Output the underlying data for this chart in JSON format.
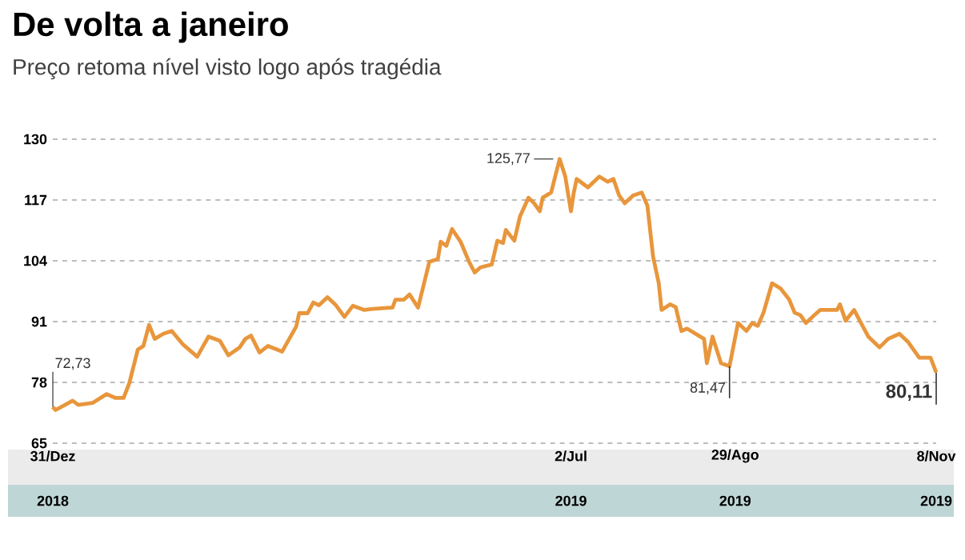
{
  "chart_data": {
    "type": "line",
    "title": "De volta a janeiro",
    "subtitle": "Preço retoma nível visto logo após tragédia",
    "xlim": [
      "2018-12-31",
      "2019-11-08"
    ],
    "ylim": [
      65,
      130
    ],
    "yticks": [
      65,
      78,
      91,
      104,
      117,
      130
    ],
    "xticks": [
      {
        "value": "2018-12-31",
        "label": "31/Dez"
      },
      {
        "value": "2019-07-02",
        "label": "2/Jul"
      },
      {
        "value": "2019-08-29",
        "label": "29/Ago"
      },
      {
        "value": "2019-11-08",
        "label": "8/Nov"
      }
    ],
    "grid": "y",
    "series": [
      {
        "color": "#e8963c",
        "x": [
          "2018-12-31",
          "2019-01-01",
          "2019-01-07",
          "2019-01-09",
          "2019-01-14",
          "2019-01-19",
          "2019-01-22",
          "2019-01-25",
          "2019-01-27",
          "2019-01-30",
          "2019-02-01",
          "2019-02-03",
          "2019-02-05",
          "2019-02-08",
          "2019-02-11",
          "2019-02-15",
          "2019-02-20",
          "2019-02-24",
          "2019-02-28",
          "2019-03-03",
          "2019-03-07",
          "2019-03-09",
          "2019-03-11",
          "2019-03-14",
          "2019-03-17",
          "2019-03-22",
          "2019-03-27",
          "2019-03-28",
          "2019-03-31",
          "2019-04-02",
          "2019-04-04",
          "2019-04-07",
          "2019-04-10",
          "2019-04-13",
          "2019-04-16",
          "2019-04-20",
          "2019-04-23",
          "2019-04-30",
          "2019-05-01",
          "2019-05-04",
          "2019-05-06",
          "2019-05-09",
          "2019-05-13",
          "2019-05-16",
          "2019-05-17",
          "2019-05-19",
          "2019-05-21",
          "2019-05-24",
          "2019-05-27",
          "2019-05-29",
          "2019-05-31",
          "2019-06-04",
          "2019-06-06",
          "2019-06-08",
          "2019-06-09",
          "2019-06-12",
          "2019-06-14",
          "2019-06-17",
          "2019-06-19",
          "2019-06-21",
          "2019-06-22",
          "2019-06-25",
          "2019-06-28",
          "2019-06-30",
          "2019-07-02",
          "2019-07-03",
          "2019-07-04",
          "2019-07-08",
          "2019-07-12",
          "2019-07-15",
          "2019-07-17",
          "2019-07-19",
          "2019-07-21",
          "2019-07-24",
          "2019-07-27",
          "2019-07-29",
          "2019-07-31",
          "2019-08-02",
          "2019-08-03",
          "2019-08-06",
          "2019-08-08",
          "2019-08-10",
          "2019-08-12",
          "2019-08-15",
          "2019-08-18",
          "2019-08-19",
          "2019-08-21",
          "2019-08-24",
          "2019-08-27",
          "2019-08-30",
          "2019-09-02",
          "2019-09-04",
          "2019-09-06",
          "2019-09-08",
          "2019-09-11",
          "2019-09-14",
          "2019-09-17",
          "2019-09-19",
          "2019-09-21",
          "2019-09-23",
          "2019-09-26",
          "2019-09-28",
          "2019-10-04",
          "2019-10-05",
          "2019-10-07",
          "2019-10-10",
          "2019-10-12",
          "2019-10-15",
          "2019-10-19",
          "2019-10-22",
          "2019-10-26",
          "2019-10-29",
          "2019-11-02",
          "2019-11-06",
          "2019-11-08"
        ],
        "values": [
          72.73,
          72.1,
          74.1,
          73.2,
          73.6,
          75.5,
          74.7,
          74.7,
          77.8,
          85.0,
          85.8,
          90.3,
          87.3,
          88.4,
          89.0,
          86.1,
          83.5,
          87.8,
          86.9,
          83.8,
          85.5,
          87.3,
          88.0,
          84.4,
          85.8,
          84.6,
          90.0,
          92.8,
          92.8,
          95.1,
          94.5,
          96.2,
          94.5,
          92.0,
          94.4,
          93.5,
          93.7,
          94.0,
          95.7,
          95.7,
          96.8,
          94.0,
          103.8,
          104.4,
          108.1,
          107.2,
          110.8,
          108.1,
          103.8,
          101.5,
          102.6,
          103.2,
          108.3,
          107.8,
          110.6,
          108.3,
          113.5,
          117.5,
          116.3,
          114.6,
          117.5,
          118.6,
          125.77,
          122.0,
          114.6,
          118.6,
          121.5,
          119.7,
          122.0,
          120.9,
          121.5,
          118.0,
          116.3,
          118.0,
          118.6,
          115.8,
          104.9,
          99.2,
          93.5,
          94.7,
          94.1,
          89.0,
          89.5,
          88.4,
          87.3,
          82.1,
          87.8,
          82.1,
          81.47,
          90.7,
          89.0,
          90.7,
          90.1,
          92.9,
          99.2,
          98.1,
          95.8,
          92.9,
          92.4,
          90.7,
          92.4,
          93.5,
          93.5,
          94.7,
          91.2,
          93.5,
          91.2,
          87.8,
          85.5,
          87.3,
          88.4,
          86.7,
          83.3,
          83.3,
          80.11
        ]
      }
    ],
    "annotations": [
      {
        "text": "72,73",
        "x": "2018-12-31",
        "y": 72.73
      },
      {
        "text": "125,77",
        "x": "2019-06-28",
        "y": 125.77
      },
      {
        "text": "81,47",
        "x": "2019-08-27",
        "y": 81.47
      },
      {
        "text": "80,11",
        "x": "2019-11-08",
        "y": 80.11
      },
      "2018",
      "2019",
      "2019",
      "2019"
    ]
  }
}
